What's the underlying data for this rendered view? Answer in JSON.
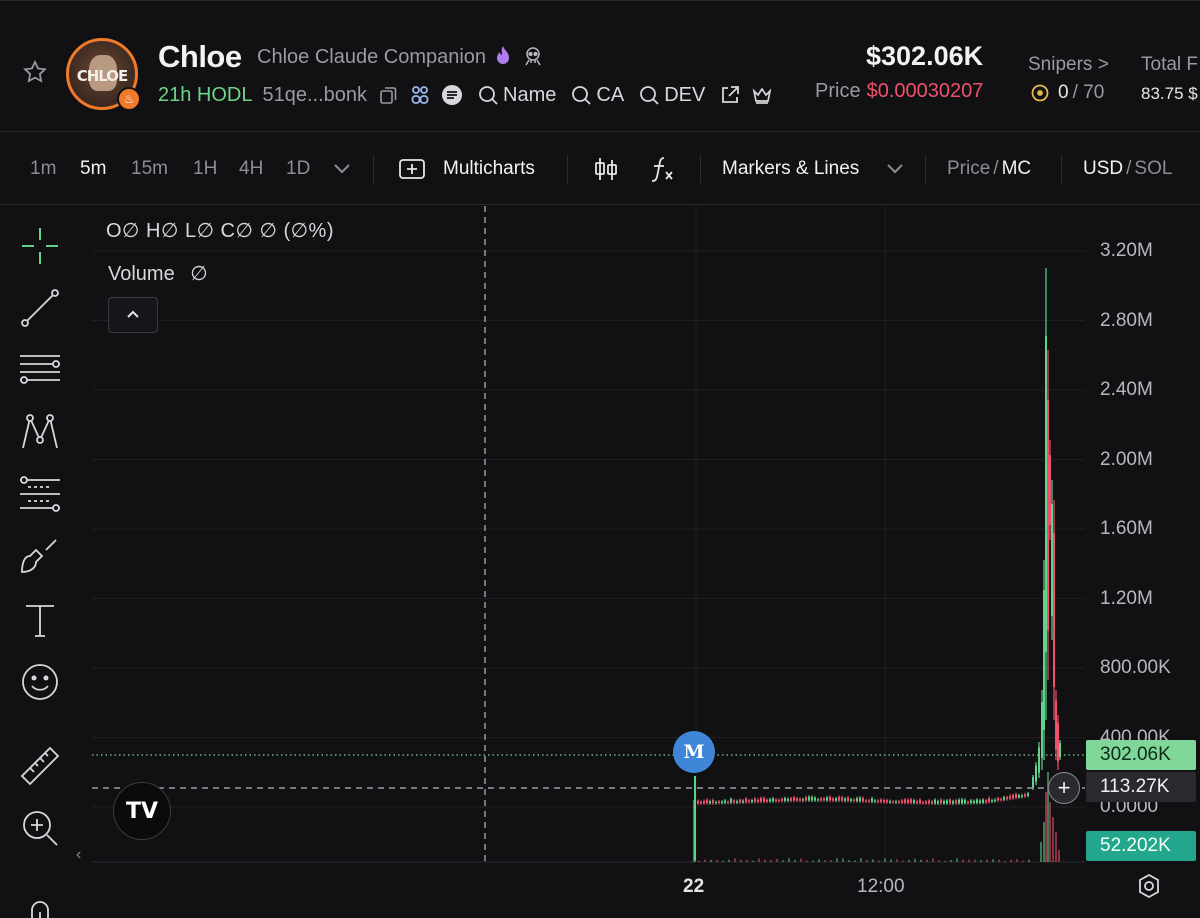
{
  "token": {
    "ticker": "Chloe",
    "name": "Chloe Claude Companion",
    "avatar_text": "CHLOE",
    "age_label": "21h HODL",
    "address": "51qe...bonk",
    "search_links": [
      "Name",
      "CA",
      "DEV"
    ]
  },
  "market": {
    "market_cap": "$302.06K",
    "price_label": "Price",
    "price": "$0.00030207",
    "snipers_label": "Snipers >",
    "snipers_value": "0",
    "snipers_total": "/ 70",
    "total_label": "Total F",
    "total_value": "83.75 $"
  },
  "toolbar": {
    "intervals": [
      "1m",
      "5m",
      "15m",
      "1H",
      "4H",
      "1D"
    ],
    "active_interval": "5m",
    "multicharts": "Multicharts",
    "markers": "Markers & Lines",
    "price_toggle": {
      "a": "Price",
      "sep": "/",
      "b": "MC"
    },
    "currency_toggle": {
      "a": "USD",
      "sep": "/",
      "b": "SOL"
    }
  },
  "legend": {
    "ohlc": "O∅ H∅ L∅ C∅ ∅ (∅%)",
    "volume_label": "Volume",
    "volume_value": "∅"
  },
  "chart_data": {
    "type": "candlestick",
    "y_ticks": [
      "3.20M",
      "2.80M",
      "2.40M",
      "2.00M",
      "1.60M",
      "1.20M",
      "800.00K",
      "400.00K",
      "0.0000"
    ],
    "ylim": [
      0,
      3200000
    ],
    "x_ticks": [
      "22",
      "12:00"
    ],
    "marker_label": "M",
    "current_value_label": "302.06K",
    "crosshair_value_label": "113.27K",
    "volume_value_label": "52.202K",
    "colors": {
      "up": "#5fd38a",
      "down": "#f0506e",
      "grid": "#1f1f23",
      "background": "#111113"
    }
  },
  "icons": {
    "tv_logo": "TV"
  }
}
